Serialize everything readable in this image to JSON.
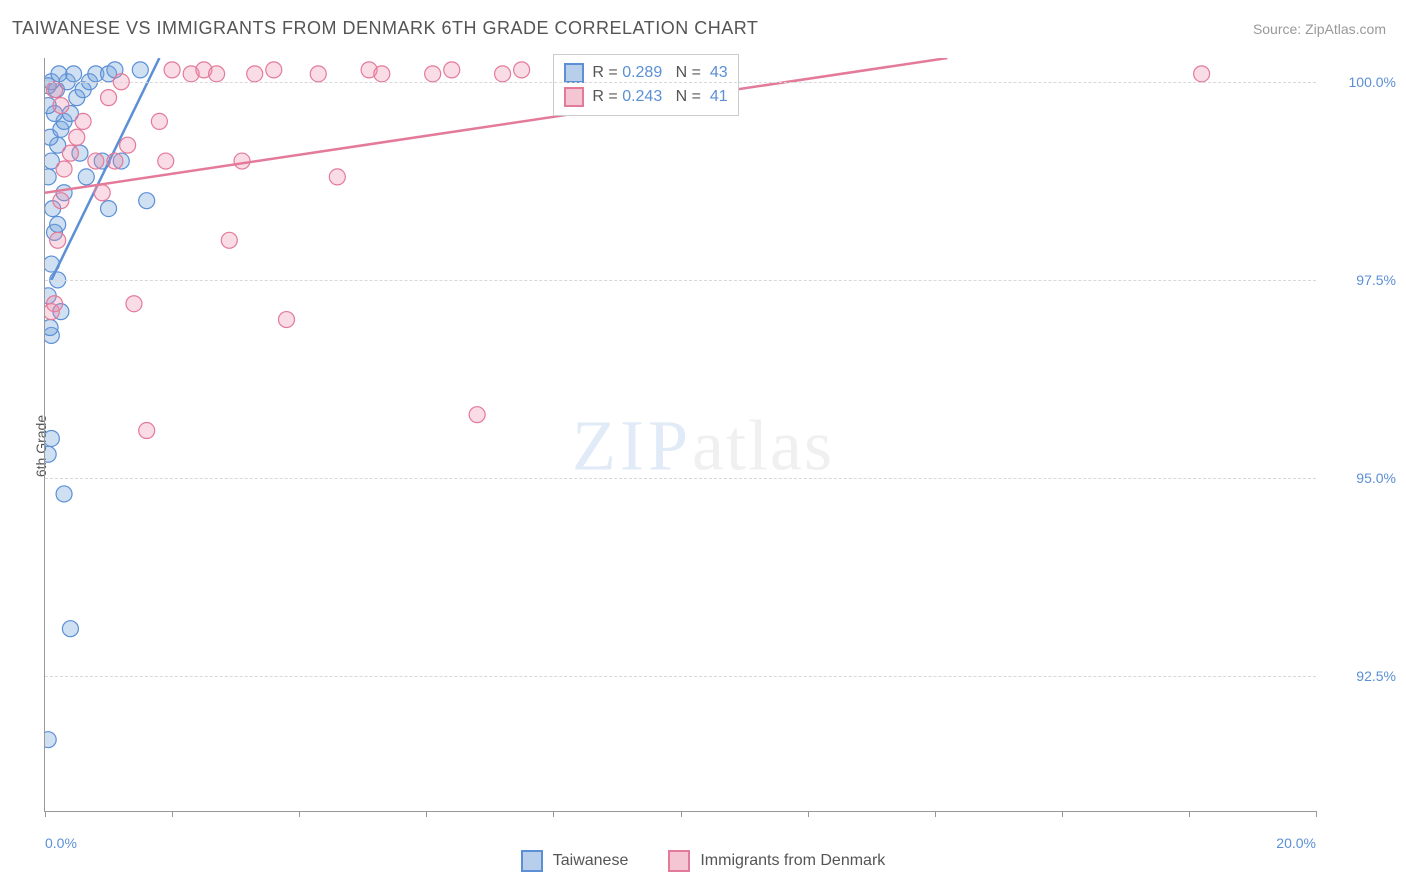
{
  "title": "TAIWANESE VS IMMIGRANTS FROM DENMARK 6TH GRADE CORRELATION CHART",
  "source": "Source: ZipAtlas.com",
  "ylabel": "6th Grade",
  "watermark": {
    "part1": "ZIP",
    "part2": "atlas"
  },
  "chart": {
    "type": "scatter",
    "xlim": [
      0,
      20
    ],
    "ylim": [
      90.8,
      100.3
    ],
    "xtick_positions": [
      0,
      2,
      4,
      6,
      8,
      10,
      12,
      14,
      16,
      18,
      20
    ],
    "xtick_labels": {
      "0": "0.0%",
      "20": "20.0%"
    },
    "ytick_positions": [
      92.5,
      95.0,
      97.5,
      100.0
    ],
    "ytick_labels": [
      "92.5%",
      "95.0%",
      "97.5%",
      "100.0%"
    ],
    "background_color": "#ffffff",
    "grid_color": "#d8d8d8",
    "axis_color": "#999999",
    "marker_radius": 8,
    "marker_stroke_width": 1.2,
    "trend_line_width": 2.5,
    "series": [
      {
        "key": "taiwanese",
        "label": "Taiwanese",
        "fill": "rgba(120,165,220,0.35)",
        "stroke": "#5b8fd6",
        "swatch_fill": "#b8cfeb",
        "swatch_border": "#5b8fd6",
        "R": "0.289",
        "N": "43",
        "trend": {
          "x1": 0.1,
          "y1": 97.5,
          "x2": 1.8,
          "y2": 100.3
        },
        "points": [
          [
            0.05,
            91.7
          ],
          [
            0.4,
            93.1
          ],
          [
            0.05,
            95.3
          ],
          [
            0.1,
            95.5
          ],
          [
            0.3,
            94.8
          ],
          [
            0.1,
            96.8
          ],
          [
            0.08,
            96.9
          ],
          [
            0.2,
            97.5
          ],
          [
            0.25,
            97.1
          ],
          [
            0.05,
            97.3
          ],
          [
            0.1,
            97.7
          ],
          [
            0.15,
            98.1
          ],
          [
            0.12,
            98.4
          ],
          [
            0.2,
            98.2
          ],
          [
            0.3,
            98.6
          ],
          [
            0.05,
            98.8
          ],
          [
            0.1,
            99.0
          ],
          [
            0.2,
            99.2
          ],
          [
            0.08,
            99.3
          ],
          [
            0.25,
            99.4
          ],
          [
            0.3,
            99.5
          ],
          [
            0.15,
            99.6
          ],
          [
            0.4,
            99.6
          ],
          [
            0.05,
            99.7
          ],
          [
            0.5,
            99.8
          ],
          [
            0.18,
            99.9
          ],
          [
            0.6,
            99.9
          ],
          [
            0.1,
            100.0
          ],
          [
            0.35,
            100.0
          ],
          [
            0.7,
            100.0
          ],
          [
            0.8,
            100.1
          ],
          [
            0.45,
            100.1
          ],
          [
            0.22,
            100.1
          ],
          [
            0.9,
            99.0
          ],
          [
            1.0,
            98.4
          ],
          [
            1.2,
            99.0
          ],
          [
            1.6,
            98.5
          ],
          [
            1.0,
            100.1
          ],
          [
            1.1,
            100.15
          ],
          [
            1.5,
            100.15
          ],
          [
            0.55,
            99.1
          ],
          [
            0.65,
            98.8
          ],
          [
            0.05,
            99.95
          ]
        ]
      },
      {
        "key": "denmark",
        "label": "Immigrants from Denmark",
        "fill": "rgba(235,140,170,0.30)",
        "stroke": "#e47a9a",
        "swatch_fill": "#f4c6d4",
        "swatch_border": "#e47a9a",
        "R": "0.243",
        "N": "41",
        "trend": {
          "x1": 0.0,
          "y1": 98.6,
          "x2": 14.2,
          "y2": 100.3
        },
        "points": [
          [
            0.1,
            97.1
          ],
          [
            0.15,
            97.2
          ],
          [
            0.2,
            98.0
          ],
          [
            0.25,
            98.5
          ],
          [
            0.3,
            98.9
          ],
          [
            0.4,
            99.1
          ],
          [
            0.5,
            99.3
          ],
          [
            0.6,
            99.5
          ],
          [
            0.25,
            99.7
          ],
          [
            0.15,
            99.9
          ],
          [
            0.8,
            99.0
          ],
          [
            0.9,
            98.6
          ],
          [
            1.1,
            99.0
          ],
          [
            1.3,
            99.2
          ],
          [
            1.0,
            99.8
          ],
          [
            1.2,
            100.0
          ],
          [
            1.4,
            97.2
          ],
          [
            1.6,
            95.6
          ],
          [
            1.8,
            99.5
          ],
          [
            1.9,
            99.0
          ],
          [
            2.0,
            100.15
          ],
          [
            2.3,
            100.1
          ],
          [
            2.5,
            100.15
          ],
          [
            2.7,
            100.1
          ],
          [
            2.9,
            98.0
          ],
          [
            3.1,
            99.0
          ],
          [
            3.3,
            100.1
          ],
          [
            3.6,
            100.15
          ],
          [
            3.8,
            97.0
          ],
          [
            4.3,
            100.1
          ],
          [
            4.6,
            98.8
          ],
          [
            5.1,
            100.15
          ],
          [
            5.3,
            100.1
          ],
          [
            6.1,
            100.1
          ],
          [
            6.4,
            100.15
          ],
          [
            6.8,
            95.8
          ],
          [
            7.2,
            100.1
          ],
          [
            7.5,
            100.15
          ],
          [
            8.6,
            100.1
          ],
          [
            9.0,
            100.15
          ],
          [
            18.2,
            100.1
          ]
        ]
      }
    ]
  },
  "stats_box": {
    "r_label": "R =",
    "n_label": "N =",
    "text_color": "#555555",
    "value_color": "#5b8fd6"
  },
  "legend": {
    "position": "bottom-center"
  }
}
